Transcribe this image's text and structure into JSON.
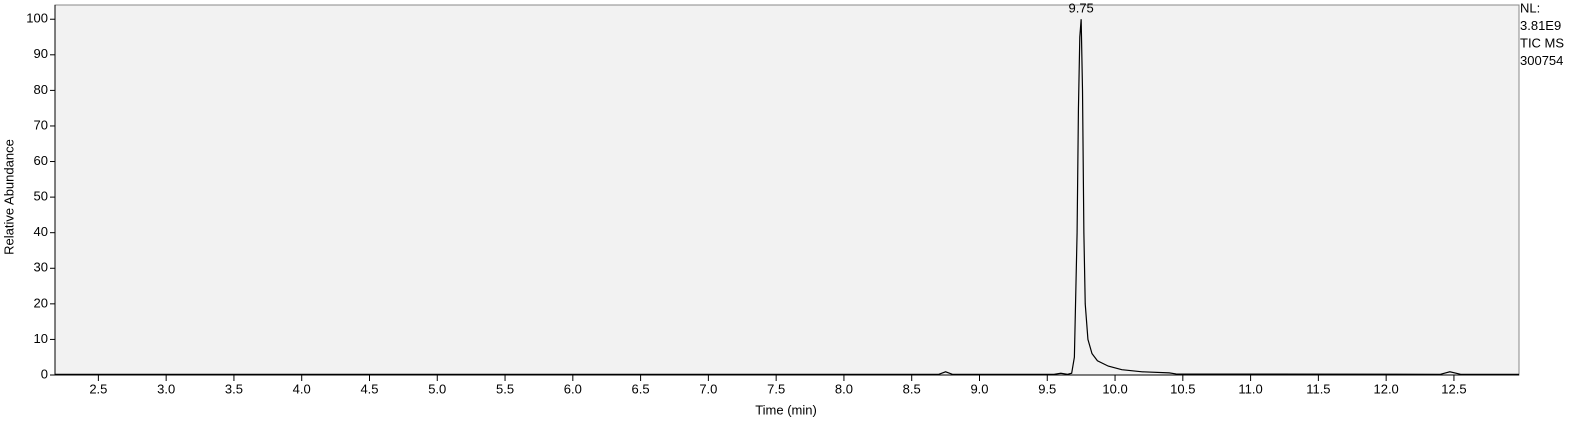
{
  "chart_data": {
    "type": "line",
    "xlabel": "Time (min)",
    "ylabel": "Relative Abundance",
    "peak_label": "9.75",
    "side_text": [
      "NL:",
      "3.81E9",
      "TIC  MS",
      "300754"
    ],
    "x": [
      2.18,
      8.7,
      8.75,
      8.8,
      9.55,
      9.6,
      9.65,
      9.68,
      9.7,
      9.72,
      9.73,
      9.74,
      9.75,
      9.76,
      9.77,
      9.78,
      9.8,
      9.83,
      9.87,
      9.95,
      10.05,
      10.2,
      10.4,
      10.45,
      12.4,
      12.47,
      12.55,
      12.98
    ],
    "series": [
      {
        "color": "#000000",
        "values": [
          0.2,
          0.2,
          0.9,
          0.2,
          0.2,
          0.5,
          0.2,
          0.5,
          5,
          40,
          75,
          95,
          100,
          80,
          40,
          20,
          10,
          6,
          4,
          2.5,
          1.5,
          0.9,
          0.6,
          0.3,
          0.2,
          0.9,
          0.2,
          0.2
        ]
      }
    ],
    "xlim": [
      2.18,
      12.98
    ],
    "ylim": [
      0,
      104
    ],
    "xticks": [
      2.5,
      {
        "value": 3,
        "label": "3.0"
      },
      3.5,
      {
        "value": 4,
        "label": "4.0"
      },
      4.5,
      {
        "value": 5,
        "label": "5.0"
      },
      5.5,
      {
        "value": 6,
        "label": "6.0"
      },
      6.5,
      {
        "value": 7,
        "label": "7.0"
      },
      7.5,
      {
        "value": 8,
        "label": "8.0"
      },
      8.5,
      {
        "value": 9,
        "label": "9.0"
      },
      9.5,
      {
        "value": 10,
        "label": "10.0"
      },
      10.5,
      {
        "value": 11,
        "label": "11.0"
      },
      11.5,
      {
        "value": 12,
        "label": "12.0"
      },
      12.5
    ],
    "yticks": [
      0,
      10,
      20,
      30,
      40,
      50,
      60,
      70,
      80,
      90,
      100
    ],
    "background": "#f2f2f2"
  }
}
